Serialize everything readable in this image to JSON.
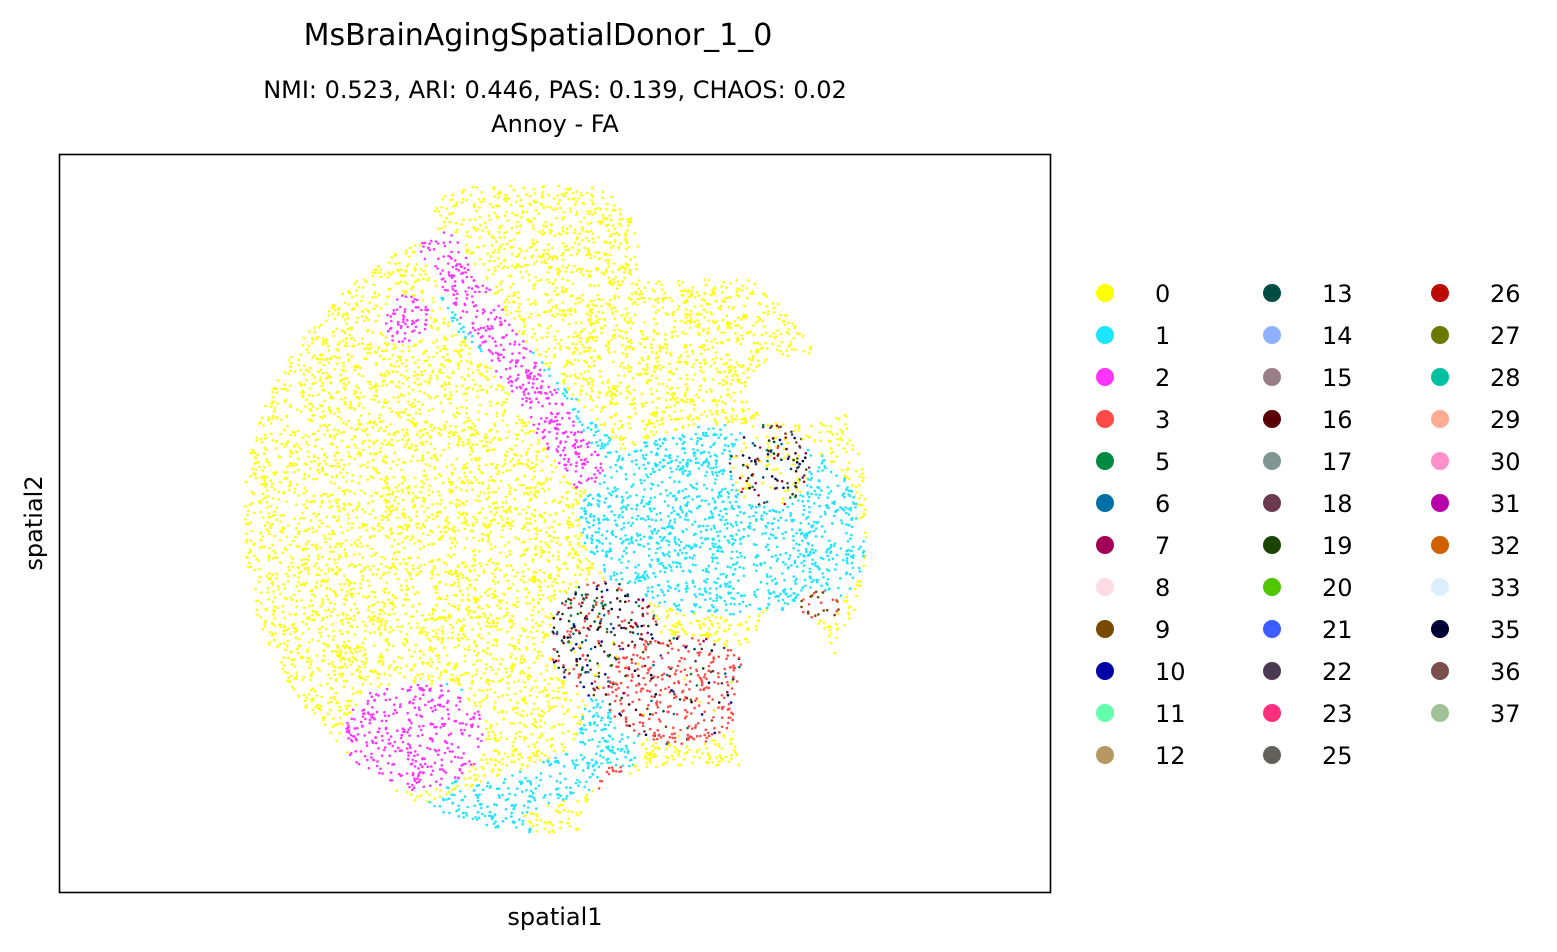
{
  "chart_data": {
    "type": "scatter",
    "title": "MsBrainAgingSpatialDonor_1_0",
    "subtitle_line1": "NMI: 0.523,  ARI: 0.446,  PAS: 0.139,  CHAOS: 0.02",
    "subtitle_line2": "Annoy - FA",
    "xlabel": "spatial1",
    "ylabel": "spatial2",
    "ticks_shown": false,
    "grid": false,
    "legend_placement": "right",
    "legend_columns": 3,
    "clusters": [
      {
        "label": "0",
        "color": "#ffff00"
      },
      {
        "label": "1",
        "color": "#1ce6ff"
      },
      {
        "label": "2",
        "color": "#ff34ff"
      },
      {
        "label": "3",
        "color": "#ff4a46"
      },
      {
        "label": "5",
        "color": "#008941"
      },
      {
        "label": "6",
        "color": "#006fa6"
      },
      {
        "label": "7",
        "color": "#a30059"
      },
      {
        "label": "8",
        "color": "#ffdbe5"
      },
      {
        "label": "9",
        "color": "#7a4900"
      },
      {
        "label": "10",
        "color": "#0000a6"
      },
      {
        "label": "11",
        "color": "#63ffac"
      },
      {
        "label": "12",
        "color": "#b79762"
      },
      {
        "label": "13",
        "color": "#004d43"
      },
      {
        "label": "14",
        "color": "#8fb0ff"
      },
      {
        "label": "15",
        "color": "#997d87"
      },
      {
        "label": "16",
        "color": "#5a0007"
      },
      {
        "label": "17",
        "color": "#809693"
      },
      {
        "label": "18",
        "color": "#6a3a4c"
      },
      {
        "label": "19",
        "color": "#1b4400"
      },
      {
        "label": "20",
        "color": "#4fc601"
      },
      {
        "label": "21",
        "color": "#3b5dff"
      },
      {
        "label": "22",
        "color": "#4a3b53"
      },
      {
        "label": "23",
        "color": "#ff2f80"
      },
      {
        "label": "25",
        "color": "#61615a"
      },
      {
        "label": "26",
        "color": "#ba0900"
      },
      {
        "label": "27",
        "color": "#6b7900"
      },
      {
        "label": "28",
        "color": "#00c2a0"
      },
      {
        "label": "29",
        "color": "#ffaa92"
      },
      {
        "label": "30",
        "color": "#ff90c9"
      },
      {
        "label": "31",
        "color": "#b903aa"
      },
      {
        "label": "32",
        "color": "#d16100"
      },
      {
        "label": "33",
        "color": "#ddefff"
      },
      {
        "label": "35",
        "color": "#000035"
      },
      {
        "label": "36",
        "color": "#7b4f4b"
      },
      {
        "label": "37",
        "color": "#a1c299"
      }
    ]
  }
}
